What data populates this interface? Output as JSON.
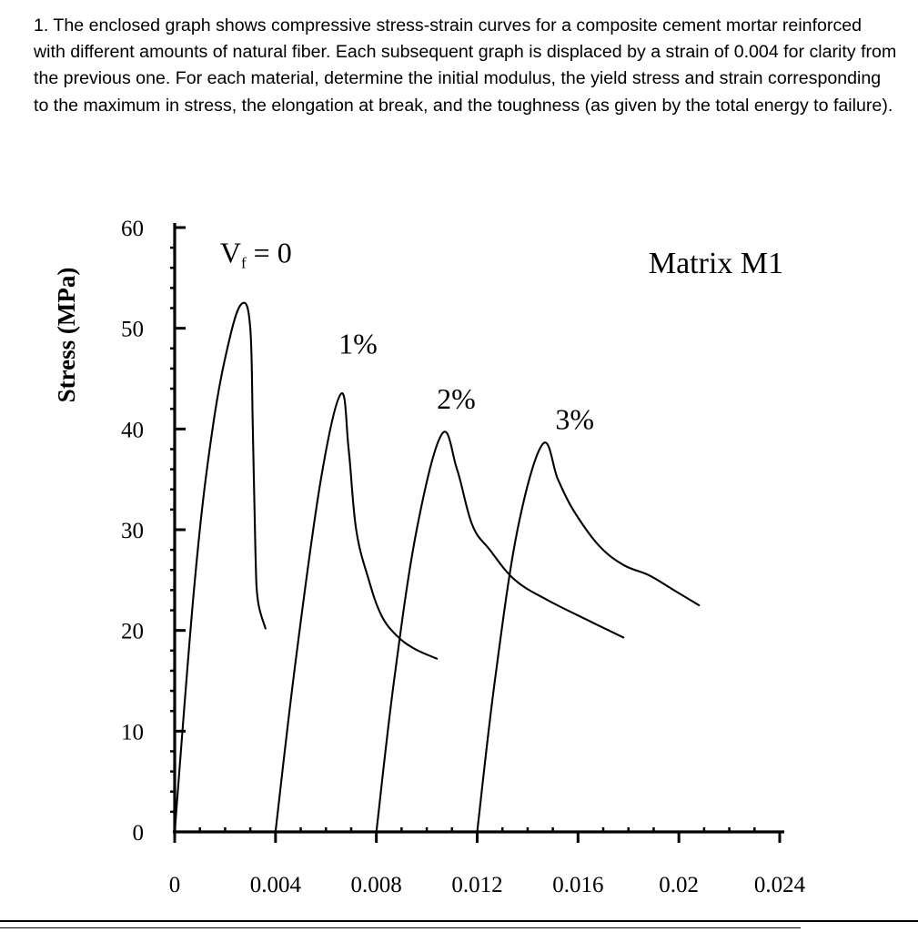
{
  "problem_text": "1. The enclosed graph shows compressive stress-strain curves for a composite cement mortar reinforced with different amounts of natural fiber.  Each subsequent graph is displaced by a strain of 0.004 for clarity from the previous one.  For each material, determine the initial modulus, the yield stress and strain corresponding to the maximum in stress, the elongation at break, and the toughness (as given by the total energy to failure).",
  "chart_data": {
    "type": "line",
    "title": "Matrix M1",
    "xlabel": "",
    "ylabel": "Stress (MPa)",
    "xlim": [
      0,
      0.024
    ],
    "ylim": [
      0,
      60
    ],
    "x_ticks": [
      "0",
      "0.004",
      "0.008",
      "0.012",
      "0.016",
      "0.02",
      "0.024"
    ],
    "y_ticks": [
      "0",
      "10",
      "20",
      "30",
      "40",
      "50",
      "60"
    ],
    "grid": false,
    "series": [
      {
        "name": "Vf = 0",
        "label_main": "V",
        "label_sub": "f",
        "label_rest": " = 0",
        "points": [
          [
            0,
            0
          ],
          [
            0.0008,
            25
          ],
          [
            0.0015,
            40
          ],
          [
            0.0022,
            49.2
          ],
          [
            0.0027,
            52.5
          ],
          [
            0.003,
            50
          ],
          [
            0.0031,
            40
          ],
          [
            0.0032,
            28
          ],
          [
            0.0033,
            23
          ],
          [
            0.0036,
            20.2
          ]
        ],
        "label_at": [
          0.0018,
          56.5
        ]
      },
      {
        "name": "1%",
        "points": [
          [
            0.004,
            0
          ],
          [
            0.0048,
            17
          ],
          [
            0.0058,
            35
          ],
          [
            0.0066,
            43.5
          ],
          [
            0.0069,
            38
          ],
          [
            0.0072,
            30
          ],
          [
            0.0077,
            25
          ],
          [
            0.0082,
            21.5
          ],
          [
            0.0088,
            19.5
          ],
          [
            0.0095,
            18.2
          ],
          [
            0.0104,
            17.2
          ]
        ],
        "label_at": [
          0.0065,
          47.5
        ]
      },
      {
        "name": "2%",
        "points": [
          [
            0.008,
            0
          ],
          [
            0.0087,
            15
          ],
          [
            0.0096,
            30
          ],
          [
            0.0106,
            39.5
          ],
          [
            0.0112,
            36
          ],
          [
            0.0118,
            30.5
          ],
          [
            0.0125,
            28
          ],
          [
            0.0135,
            25
          ],
          [
            0.0148,
            23
          ],
          [
            0.0164,
            21
          ],
          [
            0.0178,
            19.3
          ]
        ],
        "label_at": [
          0.0104,
          42
        ]
      },
      {
        "name": "3%",
        "points": [
          [
            0.012,
            0
          ],
          [
            0.0127,
            15
          ],
          [
            0.0136,
            30
          ],
          [
            0.0146,
            38.5
          ],
          [
            0.0152,
            35
          ],
          [
            0.0158,
            32
          ],
          [
            0.0168,
            28.5
          ],
          [
            0.0178,
            26.5
          ],
          [
            0.0188,
            25.5
          ],
          [
            0.0198,
            24
          ],
          [
            0.0208,
            22.5
          ]
        ],
        "label_at": [
          0.0151,
          40
        ]
      }
    ]
  }
}
